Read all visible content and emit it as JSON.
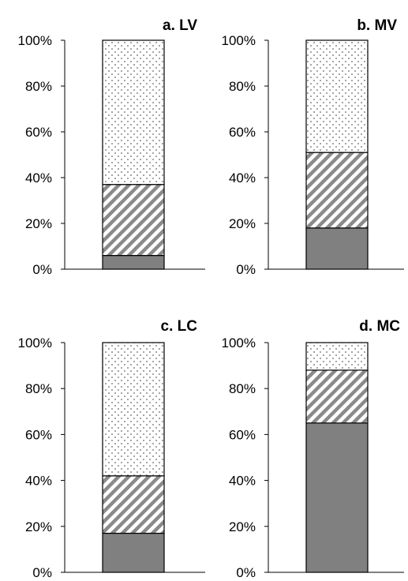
{
  "chart_data": [
    {
      "type": "bar",
      "stacked": true,
      "title": "a. LV",
      "ylim": [
        0,
        100
      ],
      "yticks": [
        "0%",
        "20%",
        "40%",
        "60%",
        "80%",
        "100%"
      ],
      "series": [
        {
          "pattern": "solid-gray",
          "values": [
            6
          ]
        },
        {
          "pattern": "diagonal-hatch",
          "values": [
            31
          ]
        },
        {
          "pattern": "dotted",
          "values": [
            63
          ]
        }
      ]
    },
    {
      "type": "bar",
      "stacked": true,
      "title": "b. MV",
      "ylim": [
        0,
        100
      ],
      "yticks": [
        "0%",
        "20%",
        "40%",
        "60%",
        "80%",
        "100%"
      ],
      "series": [
        {
          "pattern": "solid-gray",
          "values": [
            18
          ]
        },
        {
          "pattern": "diagonal-hatch",
          "values": [
            33
          ]
        },
        {
          "pattern": "dotted",
          "values": [
            49
          ]
        }
      ]
    },
    {
      "type": "bar",
      "stacked": true,
      "title": "c. LC",
      "ylim": [
        0,
        100
      ],
      "yticks": [
        "0%",
        "20%",
        "40%",
        "60%",
        "80%",
        "100%"
      ],
      "series": [
        {
          "pattern": "solid-gray",
          "values": [
            17
          ]
        },
        {
          "pattern": "diagonal-hatch",
          "values": [
            25
          ]
        },
        {
          "pattern": "dotted",
          "values": [
            58
          ]
        }
      ]
    },
    {
      "type": "bar",
      "stacked": true,
      "title": "d. MC",
      "ylim": [
        0,
        100
      ],
      "yticks": [
        "0%",
        "20%",
        "40%",
        "60%",
        "80%",
        "100%"
      ],
      "series": [
        {
          "pattern": "solid-gray",
          "values": [
            65
          ]
        },
        {
          "pattern": "diagonal-hatch",
          "values": [
            23
          ]
        },
        {
          "pattern": "dotted",
          "values": [
            12
          ]
        }
      ]
    }
  ],
  "colors": {
    "solid_fill": "#808080",
    "hatch_stroke": "#8a8a8a",
    "dot_fill": "#666666",
    "outline": "#000000"
  }
}
